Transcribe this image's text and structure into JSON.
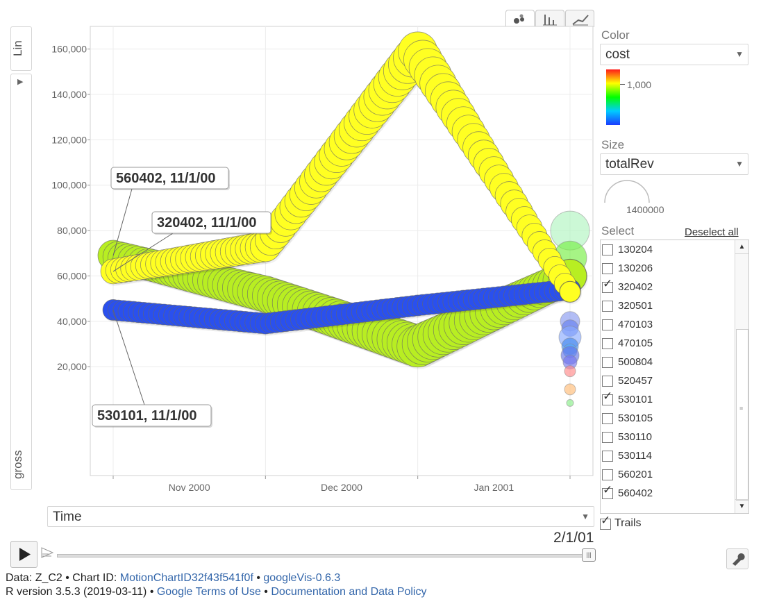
{
  "view_tabs": [
    {
      "name": "bubble",
      "icon": "bubble-chart-icon"
    },
    {
      "name": "bar",
      "icon": "bar-chart-icon"
    },
    {
      "name": "line",
      "icon": "line-chart-icon"
    }
  ],
  "y_scale_label": "Lin",
  "y_axis_label": "gross",
  "x_axis_dropdown": "Time",
  "color_panel": {
    "label": "Color",
    "selected": "cost",
    "legend_tick": "1,000",
    "gradient_colors": [
      "#ff1a1a",
      "#ffff00",
      "#00ff00",
      "#00ccff",
      "#1a3cff"
    ]
  },
  "size_panel": {
    "label": "Size",
    "selected": "totalRev",
    "max_label": "1400000"
  },
  "select_panel": {
    "label": "Select",
    "deselect_label": "Deselect all",
    "items": [
      {
        "id": "130204",
        "checked": false
      },
      {
        "id": "130206",
        "checked": false
      },
      {
        "id": "320402",
        "checked": true
      },
      {
        "id": "320501",
        "checked": false
      },
      {
        "id": "470103",
        "checked": false
      },
      {
        "id": "470105",
        "checked": false
      },
      {
        "id": "500804",
        "checked": false
      },
      {
        "id": "520457",
        "checked": false
      },
      {
        "id": "530101",
        "checked": true
      },
      {
        "id": "530105",
        "checked": false
      },
      {
        "id": "530110",
        "checked": false
      },
      {
        "id": "530114",
        "checked": false
      },
      {
        "id": "560201",
        "checked": false
      },
      {
        "id": "560402",
        "checked": true
      }
    ]
  },
  "trails": {
    "label": "Trails",
    "checked": true
  },
  "playback": {
    "date": "2/1/01",
    "progress": 1.0
  },
  "footer": {
    "line1_prefix": "Data: Z_C2 • Chart ID: ",
    "chart_id": "MotionChartID32f43f541f0f",
    "sep1": " • ",
    "package": "googleVis-0.6.3",
    "line2_prefix": "R version 3.5.3 (2019-03-11) • ",
    "terms": "Google Terms of Use",
    "sep2": " • ",
    "policy": "Documentation and Data Policy"
  },
  "chart_data": {
    "type": "bubble",
    "x_type": "time",
    "y_ticks": [
      20000,
      40000,
      60000,
      80000,
      100000,
      120000,
      140000,
      160000
    ],
    "y_tick_labels": [
      "20,000",
      "40,000",
      "60,000",
      "80,000",
      "100,000",
      "120,000",
      "140,000",
      "160,000"
    ],
    "ylim": [
      -28000,
      170000
    ],
    "x_ticks": [
      "Nov 2000",
      "Dec 2000",
      "Jan 2001"
    ],
    "x_dates": [
      "11/1/00",
      "12/1/00",
      "1/1/01",
      "2/1/01"
    ],
    "xlabel": "Time",
    "ylabel": "gross",
    "series": [
      {
        "name": "560402",
        "color": "#b8ee22",
        "y": [
          69000,
          52000,
          29000,
          60000
        ],
        "r": [
          22,
          26,
          30,
          24
        ],
        "label": "560402, 11/1/00"
      },
      {
        "name": "530101",
        "color": "#2a50ee",
        "y": [
          45000,
          39000,
          47000,
          54000
        ],
        "r": [
          15,
          15,
          15,
          15
        ],
        "label": "530101, 11/1/00"
      },
      {
        "name": "320402",
        "color": "#ffff22",
        "y": [
          62000,
          73000,
          159000,
          53000
        ],
        "r": [
          18,
          22,
          28,
          15
        ],
        "label": "320402, 11/1/00"
      }
    ],
    "other_points": [
      {
        "y": 80000,
        "r": 28,
        "color": "#b0f5c0"
      },
      {
        "y": 68000,
        "r": 24,
        "color": "#77ee44"
      },
      {
        "y": 40000,
        "r": 14,
        "color": "#8899f0"
      },
      {
        "y": 37000,
        "r": 12,
        "color": "#6680ee"
      },
      {
        "y": 33000,
        "r": 16,
        "color": "#88aaff"
      },
      {
        "y": 29000,
        "r": 12,
        "color": "#4488ee"
      },
      {
        "y": 27000,
        "r": 10,
        "color": "#55aaff"
      },
      {
        "y": 25000,
        "r": 13,
        "color": "#6677e8"
      },
      {
        "y": 22000,
        "r": 10,
        "color": "#7777ee"
      },
      {
        "y": 18000,
        "r": 8,
        "color": "#ff8888"
      },
      {
        "y": 10000,
        "r": 8,
        "color": "#ffbb77"
      },
      {
        "y": 4000,
        "r": 5,
        "color": "#88ee88"
      }
    ]
  }
}
